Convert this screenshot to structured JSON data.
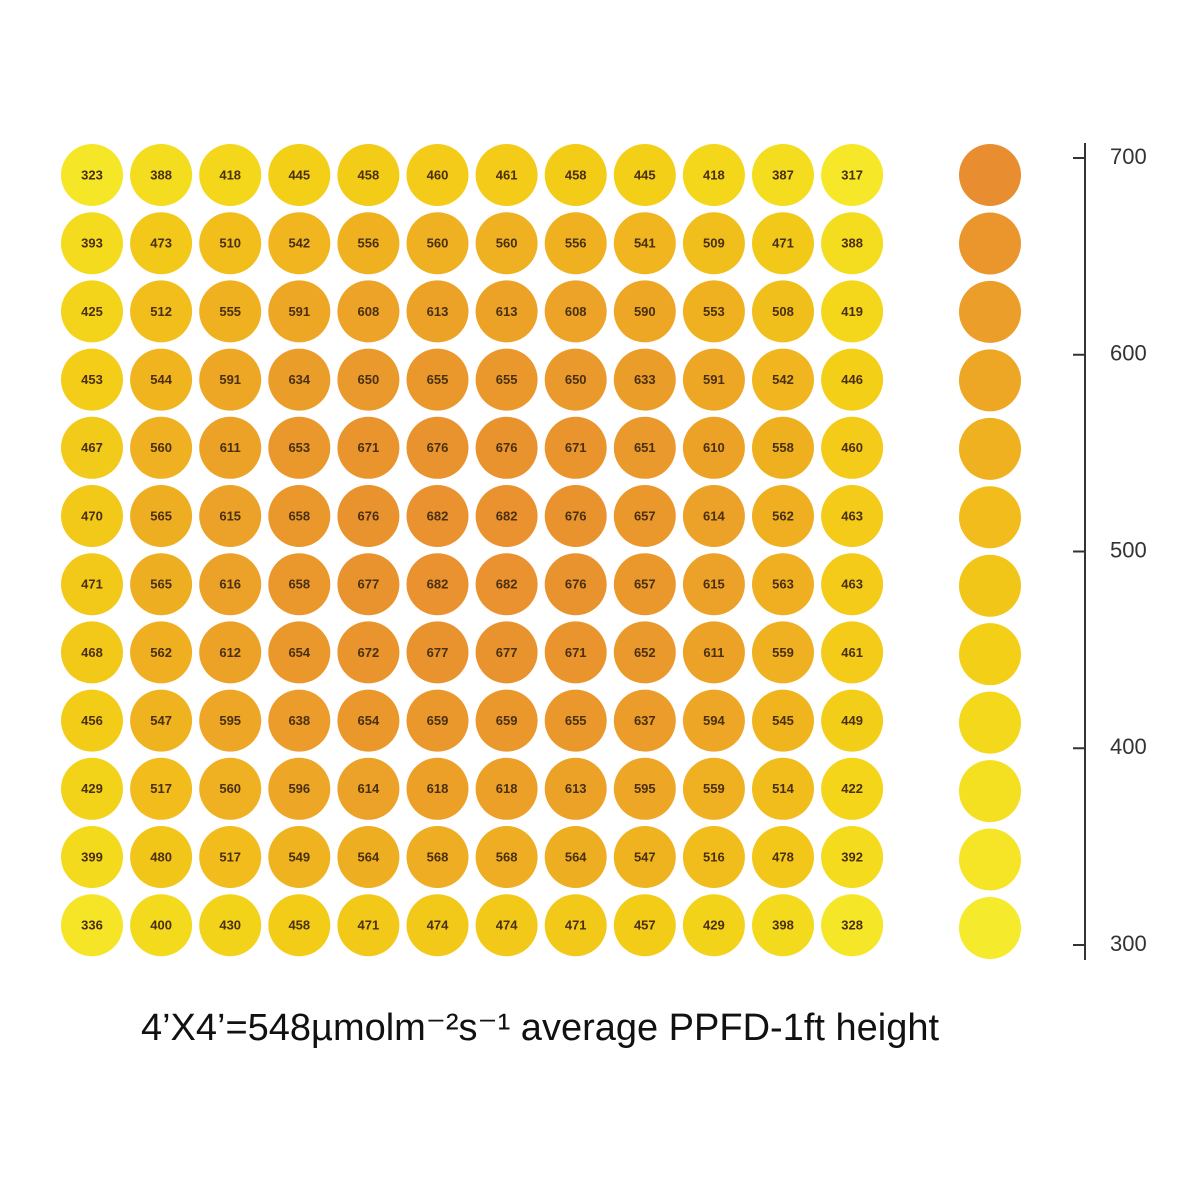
{
  "chart_data": {
    "type": "dot-grid",
    "caption": "4’X4’=548µmolm⁻²s⁻¹ average PPFD-1ft height",
    "values": [
      [
        323,
        388,
        418,
        445,
        458,
        460,
        461,
        458,
        445,
        418,
        387,
        317
      ],
      [
        393,
        473,
        510,
        542,
        556,
        560,
        560,
        556,
        541,
        509,
        471,
        388
      ],
      [
        425,
        512,
        555,
        591,
        608,
        613,
        613,
        608,
        590,
        553,
        508,
        419
      ],
      [
        453,
        544,
        591,
        634,
        650,
        655,
        655,
        650,
        633,
        591,
        542,
        446
      ],
      [
        467,
        560,
        611,
        653,
        671,
        676,
        676,
        671,
        651,
        610,
        558,
        460
      ],
      [
        470,
        565,
        615,
        658,
        676,
        682,
        682,
        676,
        657,
        614,
        562,
        463
      ],
      [
        471,
        565,
        616,
        658,
        677,
        682,
        682,
        676,
        657,
        615,
        563,
        463
      ],
      [
        468,
        562,
        612,
        654,
        672,
        677,
        677,
        671,
        652,
        611,
        559,
        461
      ],
      [
        456,
        547,
        595,
        638,
        654,
        659,
        659,
        655,
        637,
        594,
        545,
        449
      ],
      [
        429,
        517,
        560,
        596,
        614,
        618,
        618,
        613,
        595,
        559,
        514,
        422
      ],
      [
        399,
        480,
        517,
        549,
        564,
        568,
        568,
        564,
        547,
        516,
        478,
        392
      ],
      [
        336,
        400,
        430,
        458,
        471,
        474,
        474,
        471,
        457,
        429,
        398,
        328
      ]
    ],
    "color_stops": [
      "#f6ea2c",
      "#f5e526",
      "#f4df20",
      "#f4d81b",
      "#f3cf18",
      "#f2c619",
      "#f1bc1c",
      "#efb120",
      "#eda725",
      "#eb9e29",
      "#ea962d",
      "#e88e31"
    ],
    "clim": [
      300,
      700
    ],
    "cticks": [
      300,
      400,
      500,
      600,
      700
    ]
  }
}
